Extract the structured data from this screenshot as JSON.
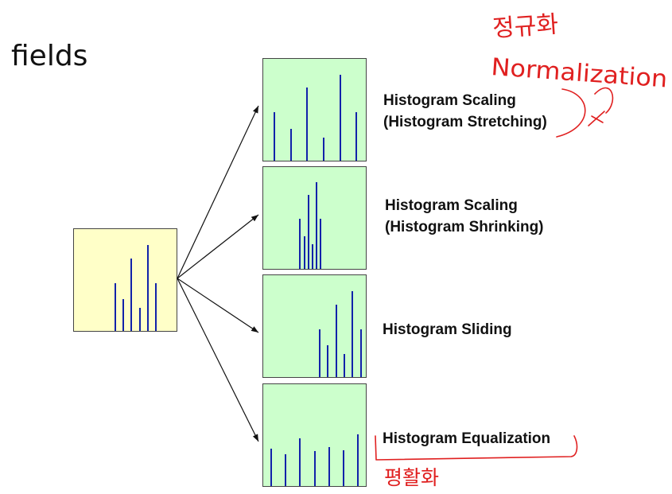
{
  "heading": "fields",
  "source": {
    "bars": [
      {
        "pos": 0.4,
        "h": 0.47
      },
      {
        "pos": 0.48,
        "h": 0.31
      },
      {
        "pos": 0.56,
        "h": 0.71
      },
      {
        "pos": 0.64,
        "h": 0.23
      },
      {
        "pos": 0.72,
        "h": 0.84
      },
      {
        "pos": 0.8,
        "h": 0.47
      }
    ]
  },
  "results": [
    {
      "label_line1": "Histogram Scaling",
      "label_line2": "(Histogram Stretching)",
      "bars": [
        {
          "pos": 0.11,
          "h": 0.48
        },
        {
          "pos": 0.27,
          "h": 0.31
        },
        {
          "pos": 0.43,
          "h": 0.72
        },
        {
          "pos": 0.59,
          "h": 0.23
        },
        {
          "pos": 0.75,
          "h": 0.84
        },
        {
          "pos": 0.91,
          "h": 0.48
        }
      ]
    },
    {
      "label_line1": "Histogram Scaling",
      "label_line2": "(Histogram Shrinking)",
      "bars": [
        {
          "pos": 0.36,
          "h": 0.49
        },
        {
          "pos": 0.4,
          "h": 0.32
        },
        {
          "pos": 0.44,
          "h": 0.73
        },
        {
          "pos": 0.48,
          "h": 0.24
        },
        {
          "pos": 0.52,
          "h": 0.85
        },
        {
          "pos": 0.56,
          "h": 0.49
        }
      ]
    },
    {
      "label_line1": "Histogram Sliding",
      "label_line2": "",
      "bars": [
        {
          "pos": 0.55,
          "h": 0.47
        },
        {
          "pos": 0.63,
          "h": 0.31
        },
        {
          "pos": 0.71,
          "h": 0.71
        },
        {
          "pos": 0.79,
          "h": 0.23
        },
        {
          "pos": 0.87,
          "h": 0.84
        },
        {
          "pos": 0.95,
          "h": 0.47
        }
      ]
    },
    {
      "label_line1": "Histogram Equalization",
      "label_line2": "",
      "bars": [
        {
          "pos": 0.08,
          "h": 0.37
        },
        {
          "pos": 0.22,
          "h": 0.31
        },
        {
          "pos": 0.36,
          "h": 0.47
        },
        {
          "pos": 0.5,
          "h": 0.34
        },
        {
          "pos": 0.64,
          "h": 0.38
        },
        {
          "pos": 0.78,
          "h": 0.35
        },
        {
          "pos": 0.92,
          "h": 0.51
        }
      ]
    }
  ],
  "annotations": {
    "korean_top": "정규화",
    "latin_top": "Normalization",
    "korean_bottom": "평활화"
  },
  "colors": {
    "source_fill": "#ffffc8",
    "result_fill": "#ccffcc",
    "bar": "#1122aa",
    "ink": "#e02020"
  }
}
